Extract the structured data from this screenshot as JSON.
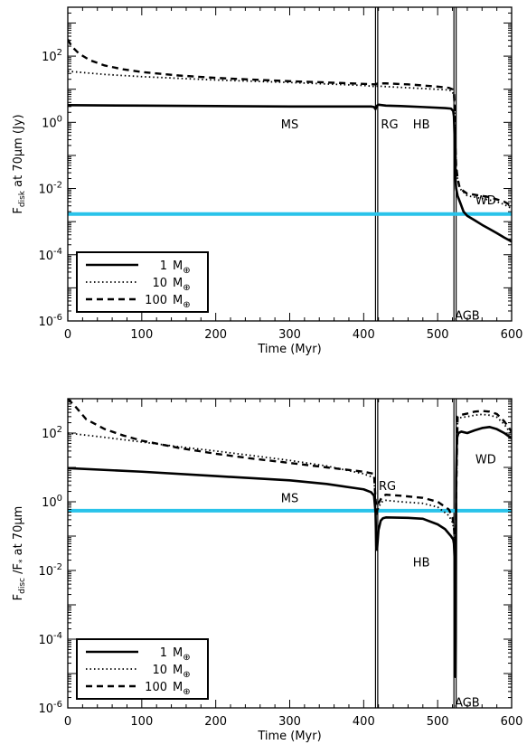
{
  "chart_data": [
    {
      "type": "line",
      "xlabel": "Time (Myr)",
      "ylabel": "F_disk at 70μm (Jy)",
      "ylabel_parts": {
        "main": "F",
        "sub": "disk",
        "rest": " at 70μm (Jy)"
      },
      "xlim": [
        0,
        600
      ],
      "ylim": [
        1e-06,
        3000
      ],
      "yscale": "log",
      "xticks": [
        0,
        100,
        200,
        300,
        400,
        500,
        600
      ],
      "xtick_labels": [
        "0",
        "100",
        "200",
        "300",
        "400",
        "500",
        "600"
      ],
      "yticks": [
        1e-06,
        0.0001,
        0.01,
        1,
        100
      ],
      "ytick_labels": [
        {
          "base": "10",
          "exp": "-6"
        },
        {
          "base": "10",
          "exp": "-4"
        },
        {
          "base": "10",
          "exp": "-2"
        },
        {
          "base": "10",
          "exp": "0"
        },
        {
          "base": "10",
          "exp": "2"
        }
      ],
      "phase_lines": [
        [
          416,
          419
        ],
        [
          522,
          525
        ]
      ],
      "threshold": 0.0017,
      "threshold_color": "#29c3ea",
      "series": [
        {
          "name": "1 M⊕",
          "style": "solid",
          "x": [
            0,
            100,
            200,
            300,
            410,
            414,
            416,
            418,
            420,
            425,
            430,
            450,
            480,
            510,
            518,
            521,
            522,
            523,
            524,
            525,
            527,
            530,
            535,
            540,
            550,
            560,
            570,
            580,
            590,
            600
          ],
          "y": [
            3.3,
            3.2,
            3.1,
            3.0,
            3.0,
            2.9,
            2.5,
            3.2,
            3.4,
            3.3,
            3.2,
            3.1,
            2.9,
            2.7,
            2.6,
            2.2,
            1.5,
            0.3,
            0.02,
            0.01,
            0.006,
            0.004,
            0.002,
            0.0015,
            0.0011,
            0.0008,
            0.0006,
            0.00045,
            0.00033,
            0.00025
          ]
        },
        {
          "name": "10 M⊕",
          "style": "dotted",
          "x": [
            0,
            50,
            100,
            200,
            300,
            400,
            416,
            419,
            430,
            480,
            515,
            520,
            522,
            523,
            524,
            525,
            527,
            530,
            540,
            550,
            560,
            570,
            580,
            590,
            600
          ],
          "y": [
            35,
            28,
            24,
            19,
            16,
            13,
            12,
            12.5,
            12,
            10.5,
            9.5,
            8.5,
            6,
            2,
            0.2,
            0.05,
            0.02,
            0.01,
            0.006,
            0.0055,
            0.005,
            0.0045,
            0.004,
            0.0033,
            0.0025
          ]
        },
        {
          "name": "100 M⊕",
          "style": "dashed",
          "x": [
            0,
            5,
            15,
            30,
            50,
            75,
            100,
            150,
            200,
            250,
            300,
            350,
            400,
            416,
            419,
            430,
            460,
            480,
            500,
            515,
            520,
            522,
            523,
            524,
            525,
            527,
            530,
            540,
            550,
            560,
            570,
            580,
            590,
            600
          ],
          "y": [
            320,
            200,
            120,
            75,
            52,
            40,
            33,
            26,
            22,
            19.5,
            17.5,
            16,
            14.5,
            14,
            15,
            15,
            14,
            13,
            12,
            11,
            10,
            8,
            2.5,
            0.2,
            0.05,
            0.02,
            0.01,
            0.007,
            0.0065,
            0.006,
            0.0055,
            0.0047,
            0.004,
            0.003
          ]
        }
      ],
      "annotations": [
        {
          "text": "MS",
          "x": 300,
          "y": 0.9
        },
        {
          "text": "RG",
          "x": 435,
          "y": 0.9
        },
        {
          "text": "HB",
          "x": 478,
          "y": 0.9
        },
        {
          "text": "WD",
          "x": 565,
          "y": 0.0045
        },
        {
          "text": "AGB",
          "x": 540,
          "y": 1.5e-06
        }
      ],
      "legend": {
        "position": "bottom-left",
        "entries": [
          {
            "value": "1",
            "unit": "M",
            "sub": "⊕",
            "style": "solid"
          },
          {
            "value": "10",
            "unit": "M",
            "sub": "⊕",
            "style": "dotted"
          },
          {
            "value": "100",
            "unit": "M",
            "sub": "⊕",
            "style": "dashed"
          }
        ]
      }
    },
    {
      "type": "line",
      "xlabel": "Time (Myr)",
      "ylabel": "F_disc /F* at 70μm",
      "ylabel_parts": {
        "main": "F",
        "sub": "disc",
        "rest": " /F",
        "sub2": "*",
        "rest2": " at 70μm"
      },
      "xlim": [
        0,
        600
      ],
      "ylim": [
        1e-06,
        1000
      ],
      "yscale": "log",
      "xticks": [
        0,
        100,
        200,
        300,
        400,
        500,
        600
      ],
      "xtick_labels": [
        "0",
        "100",
        "200",
        "300",
        "400",
        "500",
        "600"
      ],
      "yticks": [
        1e-06,
        0.0001,
        0.01,
        1,
        100
      ],
      "ytick_labels": [
        {
          "base": "10",
          "exp": "-6"
        },
        {
          "base": "10",
          "exp": "-4"
        },
        {
          "base": "10",
          "exp": "-2"
        },
        {
          "base": "10",
          "exp": "0"
        },
        {
          "base": "10",
          "exp": "2"
        }
      ],
      "phase_lines": [
        [
          416,
          419
        ],
        [
          522,
          525
        ]
      ],
      "threshold": 0.55,
      "threshold_color": "#29c3ea",
      "series": [
        {
          "name": "1 M⊕",
          "style": "solid",
          "x": [
            0,
            100,
            200,
            300,
            350,
            400,
            410,
            414,
            416,
            417,
            418,
            420,
            423,
            426,
            430,
            460,
            480,
            500,
            510,
            518,
            521,
            522,
            523,
            523.5,
            524,
            524.5,
            525,
            526,
            528,
            532,
            540,
            550,
            560,
            570,
            580,
            590,
            600
          ],
          "y": [
            9.5,
            7.5,
            5.6,
            4.2,
            3.3,
            2.3,
            1.9,
            1.5,
            0.5,
            0.05,
            0.04,
            0.15,
            0.28,
            0.33,
            0.35,
            0.34,
            0.32,
            0.22,
            0.16,
            0.1,
            0.08,
            0.06,
            0.02,
            0.001,
            8e-06,
            0.0001,
            5,
            70,
            100,
            110,
            100,
            120,
            140,
            150,
            130,
            100,
            70
          ]
        },
        {
          "name": "10 M⊕",
          "style": "dotted",
          "x": [
            0,
            50,
            100,
            150,
            200,
            250,
            300,
            350,
            400,
            414,
            416,
            418,
            420,
            425,
            430,
            450,
            480,
            500,
            515,
            520,
            522,
            523,
            524,
            525,
            527,
            530,
            540,
            550,
            560,
            570,
            580,
            590,
            600
          ],
          "y": [
            100,
            75,
            55,
            40,
            30,
            22,
            16,
            11,
            6.5,
            5,
            0.7,
            0.4,
            0.7,
            1.0,
            1.1,
            1.0,
            0.9,
            0.7,
            0.4,
            0.25,
            0.15,
            0.05,
            0.001,
            1,
            250,
            280,
            300,
            330,
            350,
            330,
            290,
            180,
            90
          ]
        },
        {
          "name": "100 M⊕",
          "style": "dashed",
          "x": [
            0,
            10,
            25,
            50,
            75,
            100,
            150,
            200,
            250,
            300,
            350,
            400,
            414,
            416,
            418,
            420,
            425,
            430,
            450,
            480,
            500,
            515,
            520,
            522,
            523,
            524,
            525,
            527,
            530,
            540,
            550,
            560,
            570,
            580,
            590,
            600
          ],
          "y": [
            1000,
            600,
            250,
            130,
            85,
            60,
            37,
            25,
            18,
            13.5,
            10,
            7.5,
            6.5,
            1.2,
            0.5,
            0.9,
            1.4,
            1.6,
            1.5,
            1.3,
            1.0,
            0.6,
            0.35,
            0.2,
            0.07,
            0.002,
            1.5,
            300,
            330,
            370,
            420,
            440,
            420,
            360,
            220,
            110
          ]
        }
      ],
      "annotations": [
        {
          "text": "MS",
          "x": 300,
          "y": 1.3
        },
        {
          "text": "RG",
          "x": 432,
          "y": 3
        },
        {
          "text": "HB",
          "x": 478,
          "y": 0.018
        },
        {
          "text": "WD",
          "x": 565,
          "y": 18
        },
        {
          "text": "AGB",
          "x": 540,
          "y": 1.5e-06
        }
      ],
      "legend": {
        "position": "bottom-left",
        "entries": [
          {
            "value": "1",
            "unit": "M",
            "sub": "⊕",
            "style": "solid"
          },
          {
            "value": "10",
            "unit": "M",
            "sub": "⊕",
            "style": "dotted"
          },
          {
            "value": "100",
            "unit": "M",
            "sub": "⊕",
            "style": "dashed"
          }
        ]
      }
    }
  ]
}
